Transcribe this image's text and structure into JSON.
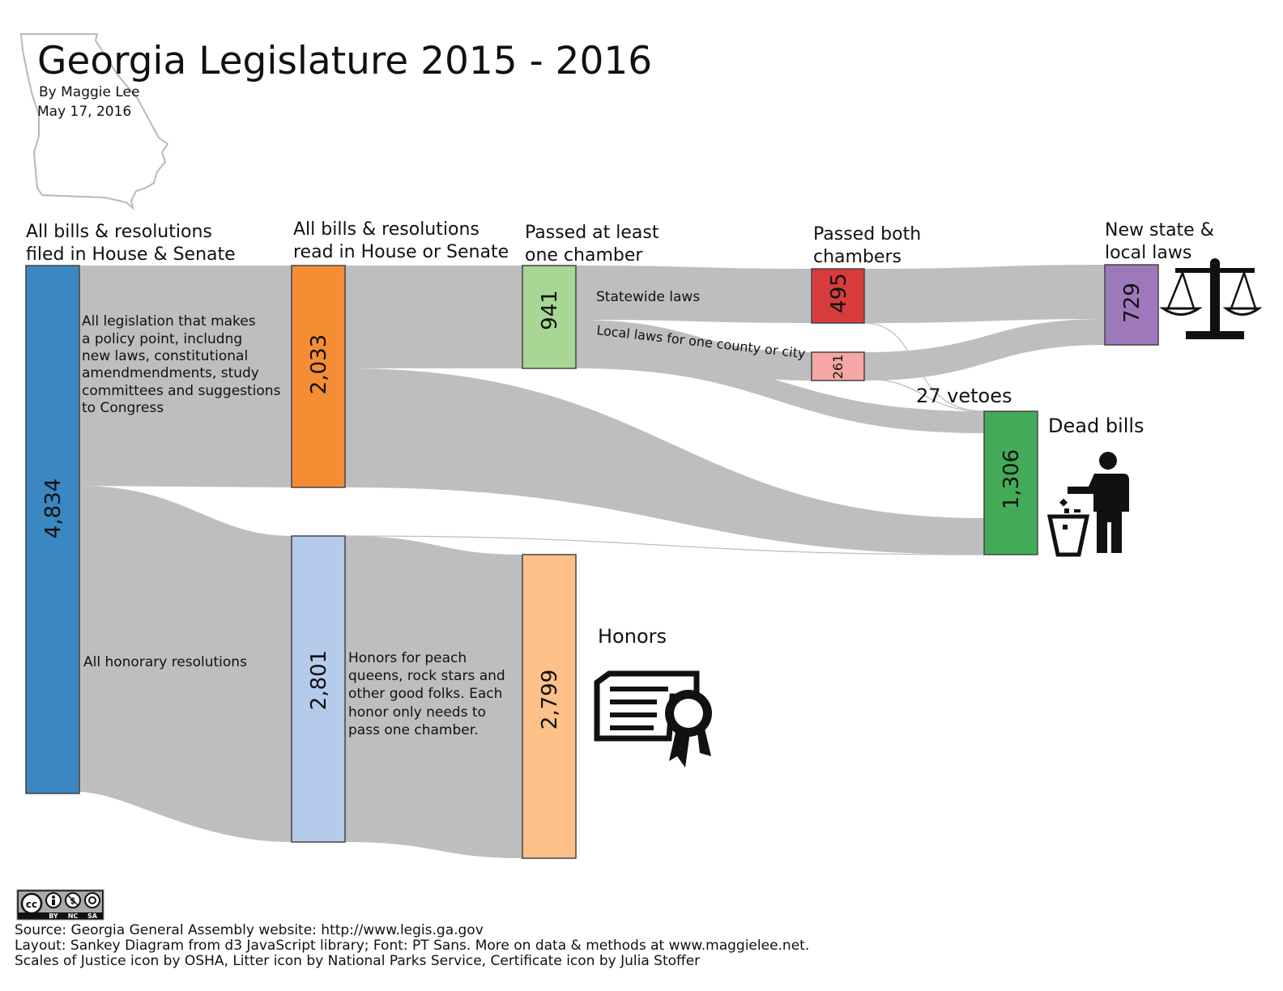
{
  "title": "Georgia Legislature 2015 - 2016",
  "byline": "By Maggie Lee",
  "date": "May 17, 2016",
  "colors": {
    "flow": "#bdbec0",
    "filed": "#3a87c2",
    "read": "#f58d35",
    "honorary": "#b5cbec",
    "passed_one": "#a8d695",
    "honors": "#fcc088",
    "passed_both_state": "#d73c3d",
    "passed_both_local": "#f6a6a3",
    "laws": "#9d79bb",
    "dead": "#43ab58"
  },
  "columns": [
    {
      "line1": "All bills & resolutions",
      "line2": "filed in House & Senate"
    },
    {
      "line1": "All bills & resolutions",
      "line2": "read in House or Senate"
    },
    {
      "line1": "Passed at least",
      "line2": "one chamber"
    },
    {
      "line1": "Passed both",
      "line2": "chambers"
    },
    {
      "line1": "New state &",
      "line2": "local laws"
    }
  ],
  "nodes": {
    "filed": "4,834",
    "read": "2,033",
    "honorary": "2,801",
    "passed_one": "941",
    "honors": "2,799",
    "both_state": "495",
    "both_local": "261",
    "laws": "729",
    "dead": "1,306"
  },
  "notes": {
    "legislation": [
      "All legislation that makes",
      "a policy point, includng",
      "new laws, constitutional",
      "amendmendments, study",
      "committees and suggestions",
      "to Congress"
    ],
    "honorary": "All honorary resolutions",
    "honors_desc": [
      "Honors for peach",
      "queens, rock stars and",
      "other good folks. Each",
      "honor only needs to",
      "pass one chamber."
    ],
    "statewide": "Statewide laws",
    "local": "Local laws for one county or city",
    "vetoes": "27 vetoes",
    "dead": "Dead bills",
    "honors": "Honors"
  },
  "license": {
    "cc": "cc",
    "by": "BY",
    "nc": "NC",
    "sa": "SA"
  },
  "footer": [
    "Source: Georgia General Assembly website: http://www.legis.ga.gov",
    "Layout: Sankey Diagram from d3 JavaScript library; Font: PT Sans. More on data & methods at www.maggielee.net.",
    "Scales of Justice icon by OSHA, Litter icon by National Parks Service, Certificate icon by Julia Stoffer"
  ]
}
